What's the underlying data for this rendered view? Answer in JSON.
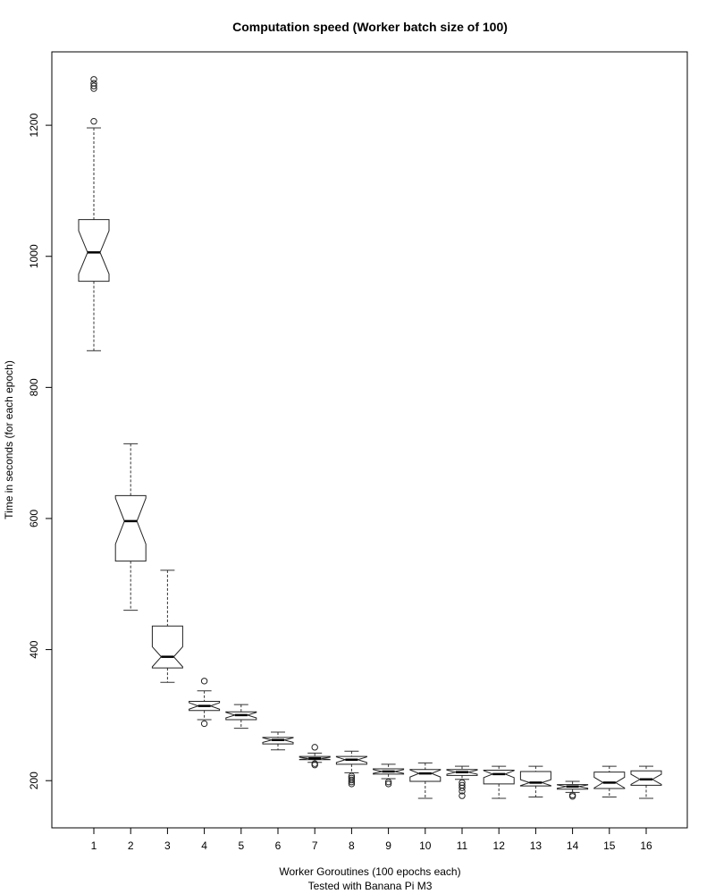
{
  "chart_data": {
    "type": "boxplot",
    "notched": true,
    "title": "Computation speed (Worker batch size of 100)",
    "xlabel": "Worker Goroutines (100 epochs each)",
    "xlabel_sub": "Tested with Banana Pi M3",
    "ylabel": "Time in seconds (for each epoch)",
    "ylim": [
      128,
      1312
    ],
    "yticks": [
      200,
      400,
      600,
      800,
      1000,
      1200
    ],
    "categories": [
      "1",
      "2",
      "3",
      "4",
      "5",
      "6",
      "7",
      "8",
      "9",
      "10",
      "11",
      "12",
      "13",
      "14",
      "15",
      "16"
    ],
    "boxes": [
      {
        "category": "1",
        "lower_whisker": 856,
        "q1": 962,
        "median": 1006,
        "q3": 1056,
        "upper_whisker": 1196,
        "outliers": [
          1206,
          1256,
          1260,
          1264,
          1270
        ]
      },
      {
        "category": "2",
        "lower_whisker": 460,
        "q1": 535,
        "median": 596,
        "q3": 635,
        "upper_whisker": 714,
        "outliers": []
      },
      {
        "category": "3",
        "lower_whisker": 350,
        "q1": 372,
        "median": 389,
        "q3": 436,
        "upper_whisker": 521,
        "outliers": []
      },
      {
        "category": "4",
        "lower_whisker": 293,
        "q1": 307,
        "median": 314,
        "q3": 321,
        "upper_whisker": 337,
        "outliers": [
          287,
          352
        ]
      },
      {
        "category": "5",
        "lower_whisker": 280,
        "q1": 293,
        "median": 300,
        "q3": 305,
        "upper_whisker": 316,
        "outliers": []
      },
      {
        "category": "6",
        "lower_whisker": 247,
        "q1": 256,
        "median": 262,
        "q3": 266,
        "upper_whisker": 274,
        "outliers": []
      },
      {
        "category": "7",
        "lower_whisker": 228,
        "q1": 232,
        "median": 234,
        "q3": 237,
        "upper_whisker": 242,
        "outliers": [
          224,
          226,
          251
        ]
      },
      {
        "category": "8",
        "lower_whisker": 212,
        "q1": 225,
        "median": 232,
        "q3": 237,
        "upper_whisker": 245,
        "outliers": [
          195,
          198,
          201,
          204,
          207
        ]
      },
      {
        "category": "9",
        "lower_whisker": 203,
        "q1": 210,
        "median": 214,
        "q3": 218,
        "upper_whisker": 225,
        "outliers": [
          195,
          198
        ]
      },
      {
        "category": "10",
        "lower_whisker": 173,
        "q1": 199,
        "median": 211,
        "q3": 217,
        "upper_whisker": 227,
        "outliers": []
      },
      {
        "category": "11",
        "lower_whisker": 202,
        "q1": 208,
        "median": 213,
        "q3": 217,
        "upper_whisker": 222,
        "outliers": [
          177,
          184,
          189,
          193,
          197
        ]
      },
      {
        "category": "12",
        "lower_whisker": 173,
        "q1": 195,
        "median": 210,
        "q3": 216,
        "upper_whisker": 222,
        "outliers": []
      },
      {
        "category": "13",
        "lower_whisker": 175,
        "q1": 192,
        "median": 197,
        "q3": 214,
        "upper_whisker": 222,
        "outliers": []
      },
      {
        "category": "14",
        "lower_whisker": 182,
        "q1": 187,
        "median": 191,
        "q3": 194,
        "upper_whisker": 199,
        "outliers": [
          176,
          178
        ]
      },
      {
        "category": "15",
        "lower_whisker": 175,
        "q1": 188,
        "median": 197,
        "q3": 213,
        "upper_whisker": 222,
        "outliers": []
      },
      {
        "category": "16",
        "lower_whisker": 173,
        "q1": 193,
        "median": 202,
        "q3": 215,
        "upper_whisker": 222,
        "outliers": []
      }
    ]
  }
}
